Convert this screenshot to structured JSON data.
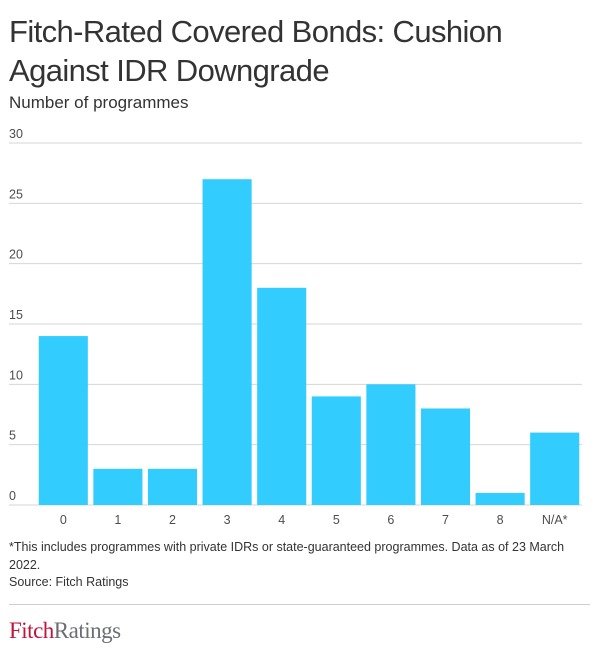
{
  "header": {
    "title": "Fitch-Rated Covered Bonds: Cushion Against IDR Downgrade",
    "subtitle": "Number of programmes"
  },
  "chart_data": {
    "type": "bar",
    "title": "Fitch-Rated Covered Bonds: Cushion Against IDR Downgrade",
    "subtitle": "Number of programmes",
    "xlabel": "",
    "ylabel": "Number of programmes",
    "categories": [
      "0",
      "1",
      "2",
      "3",
      "4",
      "5",
      "6",
      "7",
      "8",
      "N/A*"
    ],
    "values": [
      14,
      3,
      3,
      27,
      18,
      9,
      10,
      8,
      1,
      6
    ],
    "ylim": [
      0,
      30
    ],
    "yticks": [
      0,
      5,
      10,
      15,
      20,
      25,
      30
    ],
    "grid": true,
    "bar_color": "#33ccff",
    "grid_color": "#d6d6d6"
  },
  "footer": {
    "footnote": "*This includes programmes with private IDRs or state-guaranteed programmes. Data as of 23 March 2022.",
    "source": "Source: Fitch Ratings",
    "logo_part1": "Fitch",
    "logo_part2": "Ratings"
  }
}
